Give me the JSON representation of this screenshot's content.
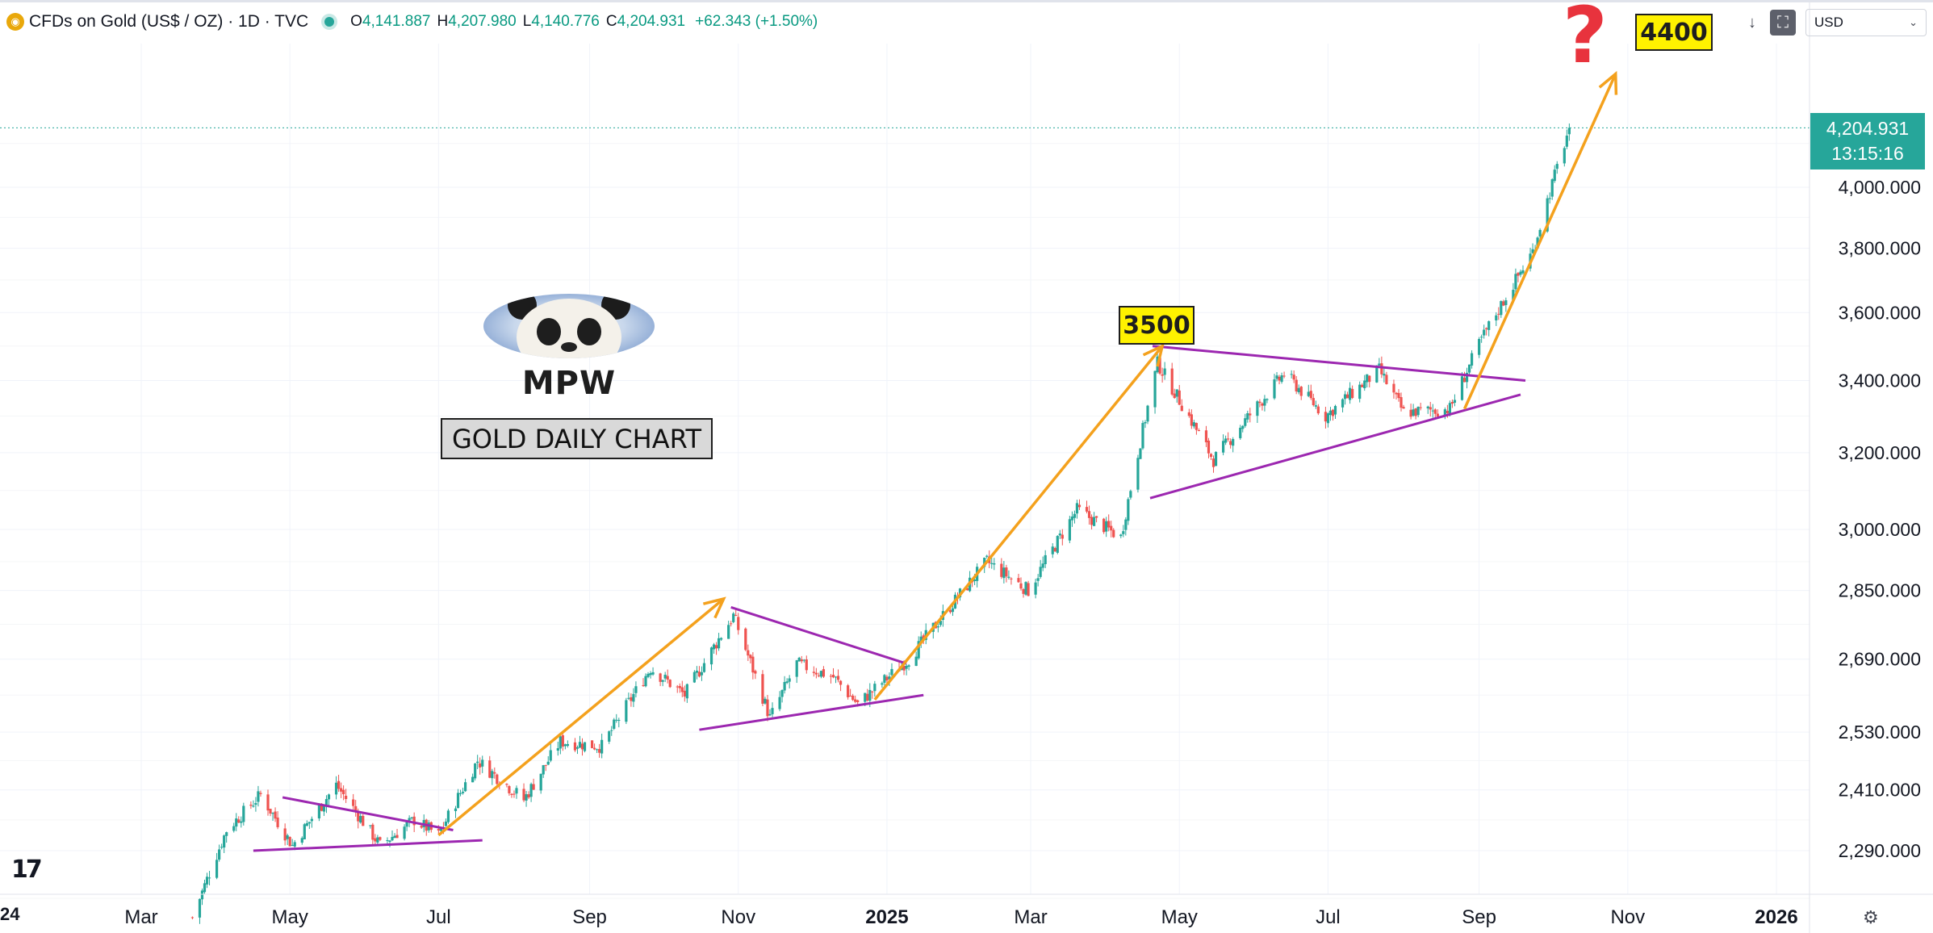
{
  "header": {
    "symbol_icon": "gold-coin-icon",
    "title": "CFDs on Gold (US$ / OZ) · 1D · TVC",
    "open_label": "O",
    "open": "4,141.887",
    "high_label": "H",
    "high": "4,207.980",
    "low_label": "L",
    "low": "4,140.776",
    "close_label": "C",
    "close": "4,204.931",
    "change": "+62.343 (+1.50%)"
  },
  "toolbar": {
    "download_icon": "arrow-down-icon",
    "fullscreen_icon": "fullscreen-icon",
    "currency": "USD",
    "currency_dropdown_icon": "chevron-down-icon"
  },
  "price_badge": {
    "price": "4,204.931",
    "countdown": "13:15:16"
  },
  "annotations": {
    "logo_text": "MPW",
    "chart_title": "GOLD DAILY CHART",
    "target_1": "3500",
    "target_2": "4400",
    "question_mark": "?"
  },
  "footer": {
    "cut_year_label": "24",
    "tv_logo": "17",
    "settings_icon": "settings-icon"
  },
  "colors": {
    "up": "#26a69a",
    "down": "#ef5350",
    "trend_arrow": "#f4a11d",
    "wedge": "#9c27b0",
    "badge": "#26a69a",
    "highlight": "#fff200"
  },
  "chart_data": {
    "type": "candlestick",
    "title": "CFDs on Gold (US$ / OZ) · 1D · TVC",
    "scale": "log",
    "y_ticks": [
      2290,
      2410,
      2530,
      2690,
      2850,
      3000,
      3200,
      3400,
      3600,
      3800,
      4000
    ],
    "y_tick_labels": [
      "2,290.000",
      "2,410.000",
      "2,530.000",
      "2,690.000",
      "2,850.000",
      "3,000.000",
      "3,200.000",
      "3,400.000",
      "3,600.000",
      "3,800.000",
      "4,000.000"
    ],
    "x_ticks": [
      "2024-03-01",
      "2024-05-01",
      "2024-07-01",
      "2024-09-01",
      "2024-11-01",
      "2025-01-01",
      "2025-03-01",
      "2025-05-01",
      "2025-07-01",
      "2025-09-01",
      "2025-11-01",
      "2026-01-01"
    ],
    "x_tick_labels": [
      "Mar",
      "May",
      "Jul",
      "Sep",
      "Nov",
      "2025",
      "Mar",
      "May",
      "Jul",
      "Sep",
      "Nov",
      "2026"
    ],
    "bold_x_labels": [
      "2025",
      "2026"
    ],
    "last_price": 4204.931,
    "path": [
      [
        "2024-03-22",
        2165
      ],
      [
        "2024-04-05",
        2330
      ],
      [
        "2024-04-19",
        2400
      ],
      [
        "2024-05-02",
        2300
      ],
      [
        "2024-05-20",
        2420
      ],
      [
        "2024-06-07",
        2300
      ],
      [
        "2024-06-21",
        2350
      ],
      [
        "2024-07-01",
        2320
      ],
      [
        "2024-07-17",
        2470
      ],
      [
        "2024-08-05",
        2390
      ],
      [
        "2024-08-20",
        2510
      ],
      [
        "2024-09-06",
        2500
      ],
      [
        "2024-09-26",
        2670
      ],
      [
        "2024-10-10",
        2610
      ],
      [
        "2024-10-30",
        2790
      ],
      [
        "2024-11-14",
        2560
      ],
      [
        "2024-11-25",
        2680
      ],
      [
        "2024-12-10",
        2650
      ],
      [
        "2024-12-20",
        2590
      ],
      [
        "2025-01-10",
        2690
      ],
      [
        "2025-02-11",
        2920
      ],
      [
        "2025-02-28",
        2850
      ],
      [
        "2025-03-20",
        3050
      ],
      [
        "2025-04-07",
        2980
      ],
      [
        "2025-04-22",
        3450
      ],
      [
        "2025-05-15",
        3180
      ],
      [
        "2025-06-13",
        3420
      ],
      [
        "2025-06-30",
        3300
      ],
      [
        "2025-07-22",
        3430
      ],
      [
        "2025-08-01",
        3310
      ],
      [
        "2025-08-20",
        3320
      ],
      [
        "2025-09-02",
        3520
      ],
      [
        "2025-09-23",
        3790
      ],
      [
        "2025-10-08",
        4205
      ]
    ],
    "trend_arrows": [
      {
        "from": [
          "2024-07-01",
          2320
        ],
        "to": [
          "2024-10-26",
          2830
        ]
      },
      {
        "from": [
          "2024-12-27",
          2600
        ],
        "to": [
          "2025-04-24",
          3500
        ]
      },
      {
        "from": [
          "2025-08-26",
          3320
        ],
        "to": [
          "2025-10-27",
          4400
        ]
      }
    ],
    "wedge_lines": [
      {
        "from": [
          "2024-04-28",
          2395
        ],
        "to": [
          "2024-07-07",
          2330
        ]
      },
      {
        "from": [
          "2024-04-16",
          2290
        ],
        "to": [
          "2024-07-19",
          2310
        ]
      },
      {
        "from": [
          "2024-10-29",
          2810
        ],
        "to": [
          "2025-01-09",
          2680
        ]
      },
      {
        "from": [
          "2024-10-16",
          2535
        ],
        "to": [
          "2025-01-16",
          2610
        ]
      },
      {
        "from": [
          "2025-04-20",
          3500
        ],
        "to": [
          "2025-09-20",
          3400
        ]
      },
      {
        "from": [
          "2025-04-19",
          3080
        ],
        "to": [
          "2025-09-18",
          3360
        ]
      }
    ]
  }
}
